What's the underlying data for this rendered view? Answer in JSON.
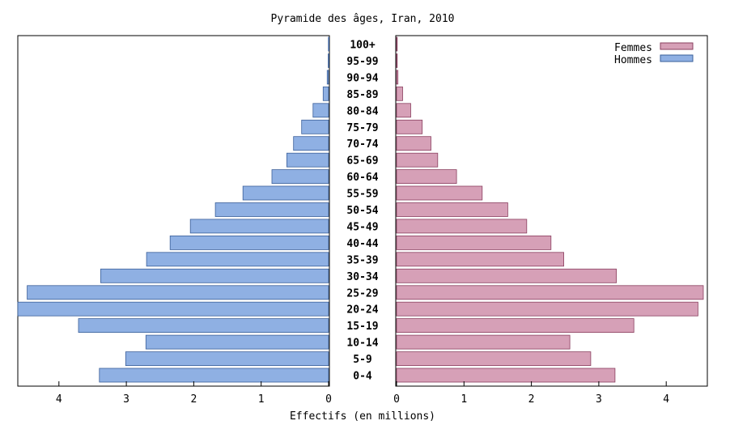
{
  "chart_data": {
    "type": "bar",
    "orientation": "horizontal-pyramid",
    "title": "Pyramide des âges, Iran, 2010",
    "xlabel": "Effectifs (en millions)",
    "categories": [
      "0-4",
      "5-9",
      "10-14",
      "15-19",
      "20-24",
      "25-29",
      "30-34",
      "35-39",
      "40-44",
      "45-49",
      "50-54",
      "55-59",
      "60-64",
      "65-69",
      "70-74",
      "75-79",
      "80-84",
      "85-89",
      "90-94",
      "95-99",
      "100+"
    ],
    "series": [
      {
        "name": "Femmes",
        "side": "right",
        "color": "#d6a0b7",
        "stroke": "#8a3f5f",
        "values": [
          3.24,
          2.88,
          2.57,
          3.52,
          4.47,
          4.55,
          3.26,
          2.48,
          2.29,
          1.93,
          1.65,
          1.27,
          0.89,
          0.61,
          0.51,
          0.38,
          0.21,
          0.09,
          0.02,
          0.005,
          0.002
        ]
      },
      {
        "name": "Hommes",
        "side": "left",
        "color": "#8fb0e3",
        "stroke": "#3a5f99",
        "values": [
          3.4,
          3.01,
          2.71,
          3.71,
          4.62,
          4.47,
          3.38,
          2.7,
          2.35,
          2.05,
          1.68,
          1.27,
          0.84,
          0.62,
          0.52,
          0.4,
          0.23,
          0.08,
          0.02,
          0.005,
          0.002
        ]
      }
    ],
    "xlim": [
      0,
      4.6
    ],
    "xticks": [
      0,
      1,
      2,
      3,
      4
    ],
    "legend_position": "top-right",
    "grid": false
  }
}
